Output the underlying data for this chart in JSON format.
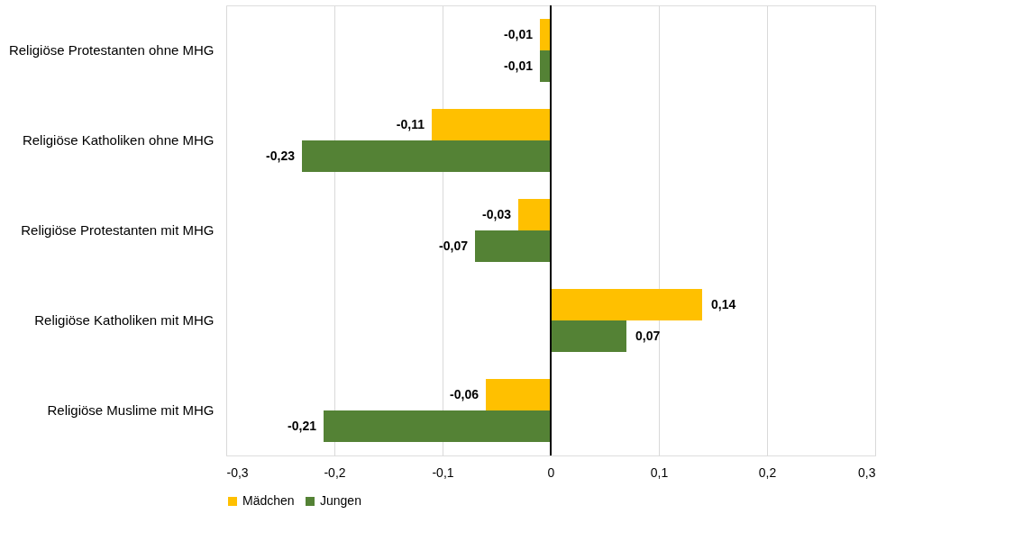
{
  "chart_data": {
    "type": "bar",
    "orientation": "horizontal",
    "categories": [
      "Religiöse Protestanten  ohne MHG",
      "Religiöse Katholiken ohne MHG",
      "Religiöse Protestanten  mit MHG",
      "Religiöse Katholiken mit MHG",
      "Religiöse Muslime mit MHG"
    ],
    "series": [
      {
        "name": "Mädchen",
        "color": "#ffc000",
        "values": [
          -0.01,
          -0.11,
          -0.03,
          0.14,
          -0.06
        ],
        "value_labels": [
          "-0,01",
          "-0,11",
          "-0,03",
          "0,14",
          "-0,06"
        ]
      },
      {
        "name": "Jungen",
        "color": "#548235",
        "values": [
          -0.01,
          -0.23,
          -0.07,
          0.07,
          -0.21
        ],
        "value_labels": [
          "-0,01",
          "-0,23",
          "-0,07",
          "0,07",
          "-0,21"
        ]
      }
    ],
    "xlim": [
      -0.3,
      0.3
    ],
    "xticks": [
      {
        "value": -0.3,
        "label": "-0,3"
      },
      {
        "value": -0.2,
        "label": "-0,2"
      },
      {
        "value": -0.1,
        "label": "-0,1"
      },
      0,
      {
        "value": 0.1,
        "label": "0,1"
      },
      {
        "value": 0.2,
        "label": "0,2"
      },
      {
        "value": 0.3,
        "label": "0,3"
      }
    ],
    "ref_lines": [
      {
        "axis": "x",
        "value": 0,
        "color": "#000000"
      }
    ],
    "grid": "x",
    "legend": "bottom"
  }
}
